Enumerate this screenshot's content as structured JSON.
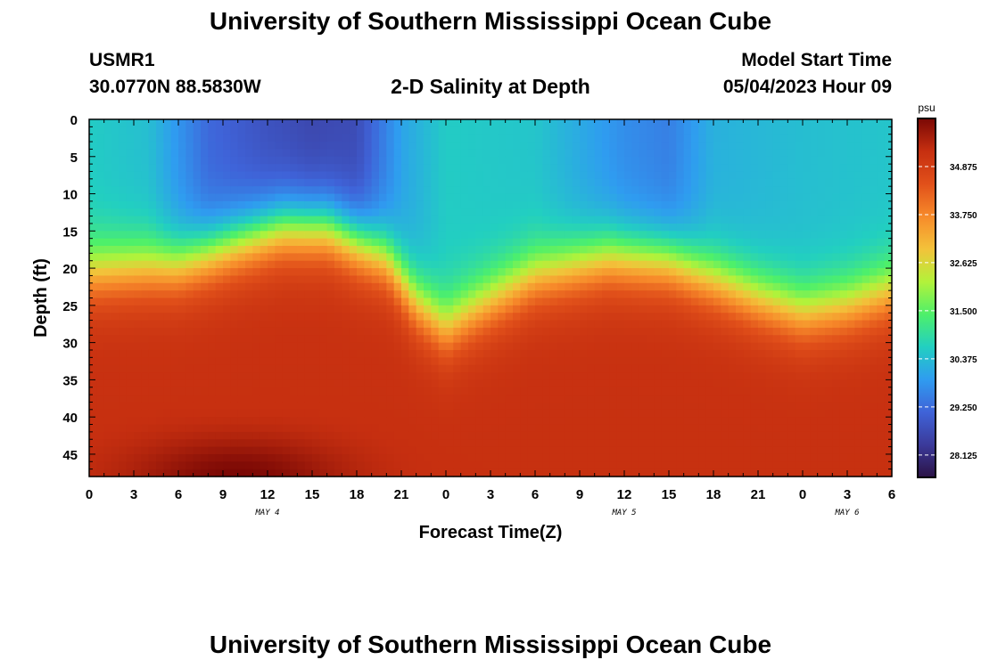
{
  "header": {
    "title": "University of Southern Mississippi Ocean Cube",
    "station_id": "USMR1",
    "station_location": "30.0770N  88.5830W",
    "subtitle": "2-D Salinity at Depth",
    "model_label": "Model Start Time",
    "model_time": "05/04/2023 Hour 09"
  },
  "footer": {
    "title": "University of Southern Mississippi Ocean Cube"
  },
  "colors": {
    "colormap": [
      "#2b1245",
      "#3b3a9a",
      "#3f63d8",
      "#2f9cf0",
      "#22cfc1",
      "#4ef06a",
      "#b3f23a",
      "#f3c23a",
      "#f78a2a",
      "#e1501a",
      "#c62f10",
      "#7a0805"
    ]
  },
  "chart_data": {
    "type": "heatmap",
    "title": "2-D Salinity at Depth",
    "xlabel": "Forecast Time(Z)",
    "ylabel": "Depth (ft)",
    "units": "psu",
    "x_hours": [
      0,
      51
    ],
    "x_tick_labels": [
      "0",
      "3",
      "6",
      "9",
      "12",
      "15",
      "18",
      "21",
      "0",
      "3",
      "6",
      "9",
      "12",
      "15",
      "18",
      "21",
      "0",
      "3",
      "6"
    ],
    "x_tick_hours": [
      0,
      3,
      6,
      9,
      12,
      15,
      18,
      21,
      24,
      27,
      30,
      33,
      36,
      39,
      42,
      45,
      48,
      51,
      54
    ],
    "date_labels": [
      {
        "label": "MAY 4",
        "hour": 12
      },
      {
        "label": "MAY 5",
        "hour": 36
      },
      {
        "label": "MAY 6",
        "hour": 51
      }
    ],
    "ylim": [
      0,
      48
    ],
    "y_tick_labels": [
      "0",
      "5",
      "10",
      "15",
      "20",
      "25",
      "30",
      "35",
      "40",
      "45"
    ],
    "y_tick_values": [
      0,
      5,
      10,
      15,
      20,
      25,
      30,
      35,
      40,
      45
    ],
    "colorbar": {
      "label": "psu",
      "range": [
        27.6,
        36.0
      ],
      "tick_values": [
        34.875,
        33.75,
        32.625,
        31.5,
        30.375,
        29.25,
        28.125
      ],
      "tick_labels": [
        "34.875",
        "33.750",
        "32.625",
        "31.500",
        "30.375",
        "29.250",
        "28.125"
      ]
    },
    "halocline": {
      "hours": [
        0,
        6,
        10,
        13,
        16,
        20,
        22,
        24,
        26,
        30,
        35,
        39,
        42,
        45,
        48,
        51,
        54
      ],
      "depth_ft": [
        20.5,
        19.5,
        16.5,
        14.5,
        14.5,
        18.5,
        24.5,
        28.0,
        25.5,
        21.0,
        18.5,
        19.0,
        21.5,
        24.0,
        26.0,
        25.0,
        23.0
      ]
    },
    "surface_salinity_psu": {
      "hours": [
        0,
        4,
        8,
        12,
        15,
        18,
        21,
        24,
        30,
        36,
        39,
        42,
        48,
        54
      ],
      "psu": [
        30.6,
        30.4,
        29.2,
        28.8,
        28.6,
        28.7,
        30.0,
        30.6,
        30.5,
        29.7,
        29.5,
        30.2,
        30.4,
        30.5
      ]
    },
    "deep_salinity_psu": 35.2,
    "bottom_max_salinity_psu": 36.0
  }
}
